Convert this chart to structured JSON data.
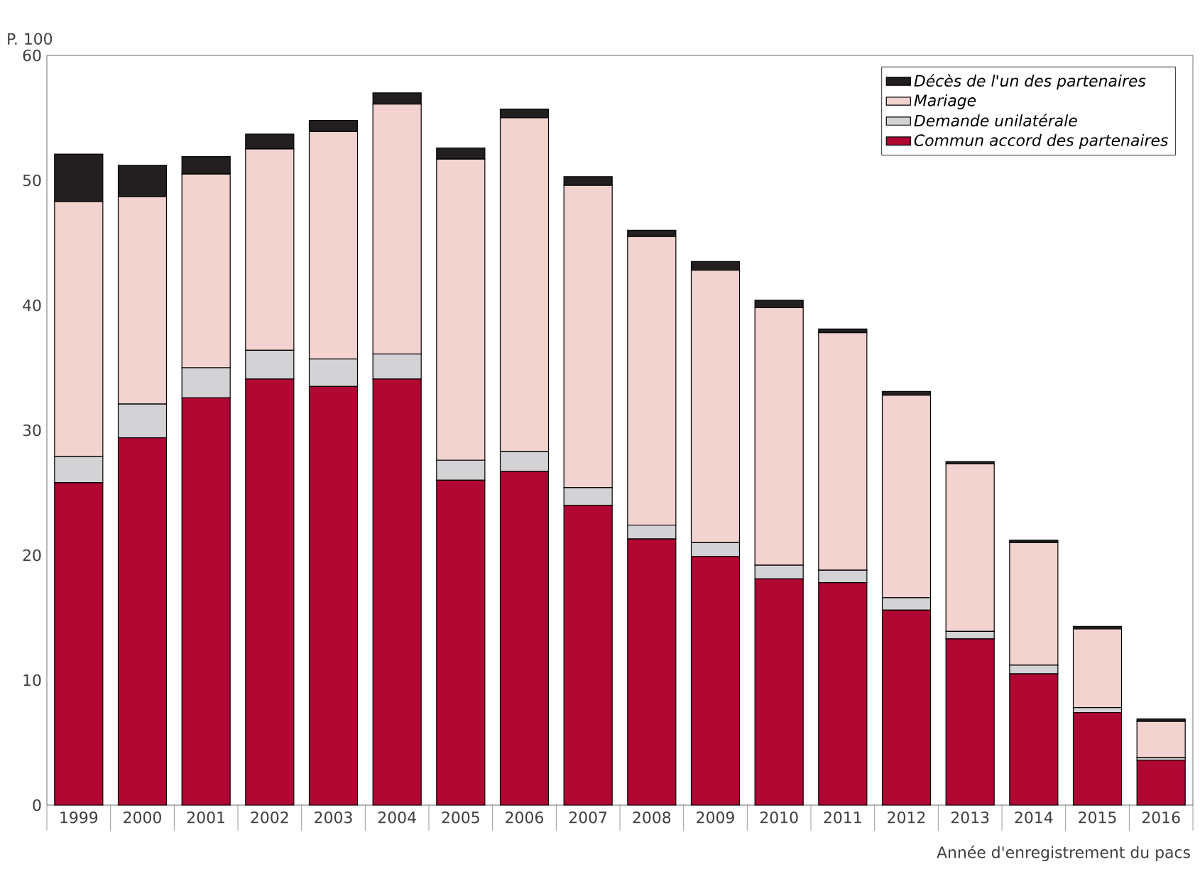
{
  "chart_data": {
    "type": "bar",
    "stacked": true,
    "ylabel": "P. 100",
    "xlabel": "Année d'enregistrement du pacs",
    "categories": [
      "1999",
      "2000",
      "2001",
      "2002",
      "2003",
      "2004",
      "2005",
      "2006",
      "2007",
      "2008",
      "2009",
      "2010",
      "2011",
      "2012",
      "2013",
      "2014",
      "2015",
      "2016"
    ],
    "series": [
      {
        "name": "Commun accord des partenaires",
        "color": "#b00733",
        "values": [
          25.8,
          29.4,
          32.6,
          34.1,
          33.5,
          34.1,
          26.0,
          26.7,
          24.0,
          21.3,
          19.9,
          18.1,
          17.8,
          15.6,
          13.3,
          10.5,
          7.4,
          3.6
        ]
      },
      {
        "name": "Demande unilatérale",
        "color": "#d3d3d5",
        "values": [
          2.1,
          2.7,
          2.4,
          2.3,
          2.2,
          2.0,
          1.6,
          1.6,
          1.4,
          1.1,
          1.1,
          1.1,
          1.0,
          1.0,
          0.6,
          0.7,
          0.4,
          0.2
        ]
      },
      {
        "name": "Mariage",
        "color": "#f2d3cf",
        "values": [
          20.4,
          16.6,
          15.5,
          16.1,
          18.2,
          20.0,
          24.1,
          26.7,
          24.2,
          23.1,
          21.8,
          20.6,
          19.0,
          16.2,
          13.4,
          9.8,
          6.3,
          2.9
        ]
      },
      {
        "name": "Décès de l'un des partenaires",
        "color": "#231f20",
        "values": [
          3.8,
          2.5,
          1.4,
          1.2,
          0.9,
          0.9,
          0.9,
          0.7,
          0.7,
          0.5,
          0.7,
          0.6,
          0.3,
          0.3,
          0.2,
          0.2,
          0.2,
          0.2
        ]
      }
    ],
    "ylim": [
      0,
      60
    ],
    "yticks": [
      0,
      10,
      20,
      30,
      40,
      50,
      60
    ],
    "grid": false,
    "legend": "top right"
  }
}
